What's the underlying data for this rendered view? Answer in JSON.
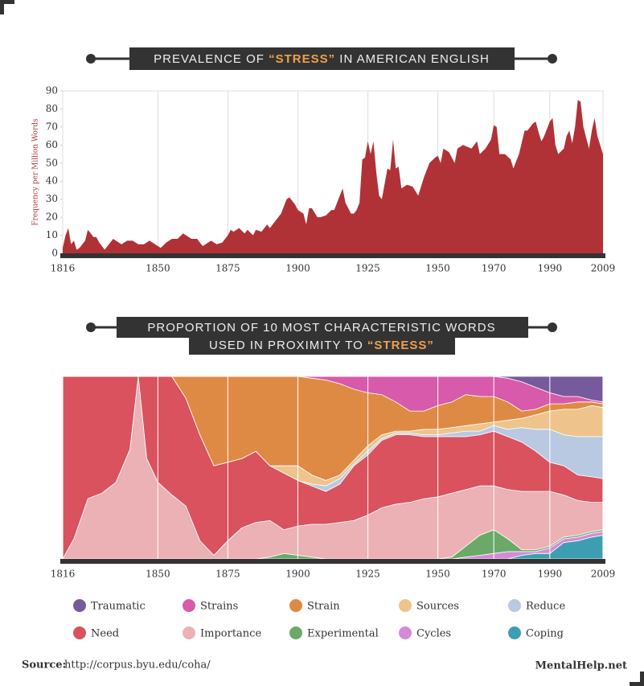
{
  "chart_data": [
    {
      "type": "area",
      "title_parts": [
        "PREVALENCE OF ",
        "“STRESS”",
        " IN AMERICAN ENGLISH"
      ],
      "y_label": "Frequency per Million Words",
      "color": "#b03236",
      "x": [
        1816,
        1817,
        1818,
        1819,
        1820,
        1821,
        1822,
        1824,
        1825,
        1827,
        1828,
        1829,
        1831,
        1832,
        1834,
        1837,
        1839,
        1841,
        1843,
        1845,
        1847,
        1849,
        1851,
        1853,
        1855,
        1857,
        1859,
        1862,
        1864,
        1866,
        1867,
        1869,
        1871,
        1873,
        1875,
        1876,
        1877,
        1879,
        1881,
        1882,
        1884,
        1885,
        1887,
        1889,
        1890,
        1891,
        1893,
        1894,
        1896,
        1897,
        1899,
        1900,
        1902,
        1903,
        1904,
        1905,
        1907,
        1908,
        1910,
        1912,
        1913,
        1915,
        1916,
        1917,
        1919,
        1920,
        1921,
        1922,
        1923,
        1924,
        1925,
        1926,
        1927,
        1928,
        1929,
        1930,
        1932,
        1933,
        1934,
        1935,
        1936,
        1937,
        1939,
        1941,
        1943,
        1945,
        1947,
        1949,
        1950,
        1951,
        1952,
        1954,
        1956,
        1957,
        1959,
        1962,
        1964,
        1965,
        1967,
        1969,
        1970,
        1971,
        1972,
        1974,
        1976,
        1977,
        1979,
        1981,
        1982,
        1984,
        1985,
        1986,
        1987,
        1988,
        1990,
        1991,
        1992,
        1993,
        1995,
        1996,
        1997,
        1998,
        1999,
        2000,
        2001,
        2002,
        2004,
        2005,
        2006,
        2007,
        2009
      ],
      "values": [
        3,
        10,
        14,
        5,
        7,
        2,
        3,
        7,
        13,
        9,
        9,
        6,
        2,
        4,
        8,
        5,
        7,
        7,
        5,
        5,
        7,
        5,
        3,
        6,
        8,
        8,
        11,
        8,
        8,
        4,
        5,
        7,
        5,
        6,
        10,
        13,
        12,
        14,
        11,
        13,
        10,
        13,
        12,
        16,
        14,
        16,
        20,
        22,
        30,
        31,
        27,
        24,
        22,
        16,
        25,
        25,
        20,
        20,
        21,
        24,
        24,
        32,
        36,
        28,
        22,
        22,
        24,
        28,
        52,
        53,
        62,
        55,
        62,
        45,
        32,
        30,
        47,
        46,
        63,
        47,
        48,
        36,
        38,
        37,
        32,
        42,
        50,
        53,
        54,
        50,
        58,
        56,
        50,
        58,
        60,
        58,
        62,
        55,
        58,
        63,
        71,
        70,
        55,
        55,
        52,
        47,
        55,
        68,
        68,
        72,
        73,
        67,
        62,
        65,
        73,
        75,
        60,
        55,
        58,
        65,
        68,
        61,
        70,
        85,
        84,
        70,
        58,
        68,
        75,
        65,
        55
      ],
      "xlim": [
        1816,
        2009
      ],
      "xticks": [
        1816,
        1850,
        1875,
        1900,
        1925,
        1950,
        1970,
        1990,
        2009
      ],
      "ylim": [
        0,
        90
      ],
      "yticks": [
        0,
        10,
        20,
        30,
        40,
        50,
        60,
        70,
        80,
        90
      ],
      "grid": true
    },
    {
      "type": "stacked_area",
      "title_parts": [
        "PROPORTION OF 10 MOST CHARACTERISTIC WORDS",
        "USED IN PROXIMITY TO ",
        "“STRESS”"
      ],
      "x": [
        1816,
        1820,
        1825,
        1830,
        1835,
        1840,
        1843,
        1846,
        1850,
        1855,
        1860,
        1865,
        1870,
        1875,
        1880,
        1885,
        1890,
        1895,
        1900,
        1905,
        1910,
        1915,
        1920,
        1925,
        1930,
        1935,
        1940,
        1945,
        1950,
        1955,
        1960,
        1965,
        1970,
        1975,
        1980,
        1985,
        1990,
        1995,
        2000,
        2005,
        2009
      ],
      "series": [
        {
          "name": "Traumatic",
          "color": "#765a9c",
          "values": [
            0,
            0,
            0,
            0,
            0,
            0,
            0,
            0,
            0,
            0,
            0,
            0,
            0,
            0,
            0,
            0,
            0,
            0,
            0,
            0,
            0,
            0,
            0,
            0,
            0,
            0,
            0,
            0,
            0,
            0,
            0,
            0,
            0,
            1,
            3,
            6,
            9,
            11,
            11,
            13,
            14
          ]
        },
        {
          "name": "Strains",
          "color": "#d85aaa",
          "values": [
            0,
            0,
            0,
            0,
            0,
            0,
            0,
            0,
            0,
            0,
            0,
            0,
            0,
            0,
            0,
            0,
            0,
            0,
            0,
            1,
            2,
            4,
            7,
            9,
            10,
            14,
            19,
            19,
            16,
            14,
            10,
            11,
            11,
            13,
            16,
            12,
            6,
            4,
            3,
            1,
            1
          ]
        },
        {
          "name": "Strain",
          "color": "#df8a44",
          "values": [
            0,
            0,
            0,
            0,
            0,
            0,
            0,
            0,
            0,
            0,
            12,
            32,
            49,
            47,
            45,
            41,
            49,
            49,
            49,
            53,
            55,
            50,
            39,
            29,
            22,
            16,
            11,
            10,
            13,
            14,
            17,
            15,
            14,
            10,
            4,
            3,
            4,
            3,
            4,
            2,
            2
          ]
        },
        {
          "name": "Sources",
          "color": "#eec48c",
          "values": [
            0,
            0,
            0,
            0,
            0,
            0,
            0,
            0,
            0,
            0,
            0,
            0,
            0,
            0,
            0,
            0,
            0,
            4,
            8,
            5,
            3,
            2,
            2,
            3,
            2,
            1,
            1,
            3,
            3,
            3,
            3,
            4,
            2,
            5,
            5,
            8,
            10,
            14,
            15,
            17,
            16
          ]
        },
        {
          "name": "Reduce",
          "color": "#b9c9e1",
          "values": [
            0,
            0,
            0,
            0,
            0,
            0,
            0,
            0,
            0,
            0,
            0,
            0,
            0,
            0,
            0,
            0,
            0,
            0,
            0,
            1,
            3,
            3,
            1,
            2,
            1,
            1,
            1,
            1,
            1,
            2,
            3,
            2,
            3,
            4,
            8,
            12,
            18,
            17,
            21,
            22,
            23
          ]
        },
        {
          "name": "Need",
          "color": "#d9525e",
          "values": [
            100,
            89,
            67,
            64,
            58,
            40,
            0,
            45,
            58,
            65,
            59,
            58,
            49,
            43,
            38,
            39,
            30,
            31,
            25,
            21,
            18,
            21,
            30,
            33,
            37,
            38,
            37,
            34,
            33,
            31,
            29,
            28,
            30,
            29,
            27,
            22,
            16,
            16,
            14,
            14,
            13
          ]
        },
        {
          "name": "Importance",
          "color": "#ebb1b4",
          "values": [
            0,
            11,
            33,
            36,
            42,
            60,
            100,
            55,
            42,
            35,
            29,
            10,
            2,
            10,
            17,
            20,
            20,
            13,
            16,
            18,
            19,
            20,
            21,
            24,
            28,
            30,
            31,
            33,
            34,
            35,
            31,
            27,
            24,
            27,
            32,
            32,
            30,
            23,
            19,
            16,
            15
          ]
        },
        {
          "name": "Experimental",
          "color": "#6aa968",
          "values": [
            0,
            0,
            0,
            0,
            0,
            0,
            0,
            0,
            0,
            0,
            0,
            0,
            0,
            0,
            0,
            0,
            1,
            3,
            2,
            1,
            0,
            0,
            0,
            0,
            0,
            0,
            0,
            0,
            0,
            1,
            6,
            11,
            13,
            7,
            1,
            1,
            1,
            1,
            1,
            1,
            1
          ]
        },
        {
          "name": "Cycles",
          "color": "#d48bd7",
          "values": [
            0,
            0,
            0,
            0,
            0,
            0,
            0,
            0,
            0,
            0,
            0,
            0,
            0,
            0,
            0,
            0,
            0,
            0,
            0,
            0,
            0,
            0,
            0,
            0,
            0,
            0,
            0,
            0,
            0,
            0,
            1,
            2,
            3,
            4,
            2,
            1,
            3,
            2,
            2,
            2,
            2
          ]
        },
        {
          "name": "Coping",
          "color": "#3e9eb1",
          "values": [
            0,
            0,
            0,
            0,
            0,
            0,
            0,
            0,
            0,
            0,
            0,
            0,
            0,
            0,
            0,
            0,
            0,
            0,
            0,
            0,
            0,
            0,
            0,
            0,
            0,
            0,
            0,
            0,
            0,
            0,
            0,
            0,
            0,
            0,
            2,
            3,
            3,
            9,
            10,
            12,
            13
          ]
        }
      ],
      "xlim": [
        1816,
        2009
      ],
      "xticks": [
        1816,
        1850,
        1875,
        1900,
        1925,
        1950,
        1970,
        1990,
        2009
      ],
      "ylim": [
        0,
        100
      ],
      "grid": true
    }
  ],
  "footer": {
    "source_label": "Source:",
    "source_url": "http://corpus.byu.edu/coha/",
    "brand": "MentalHelp.net"
  }
}
